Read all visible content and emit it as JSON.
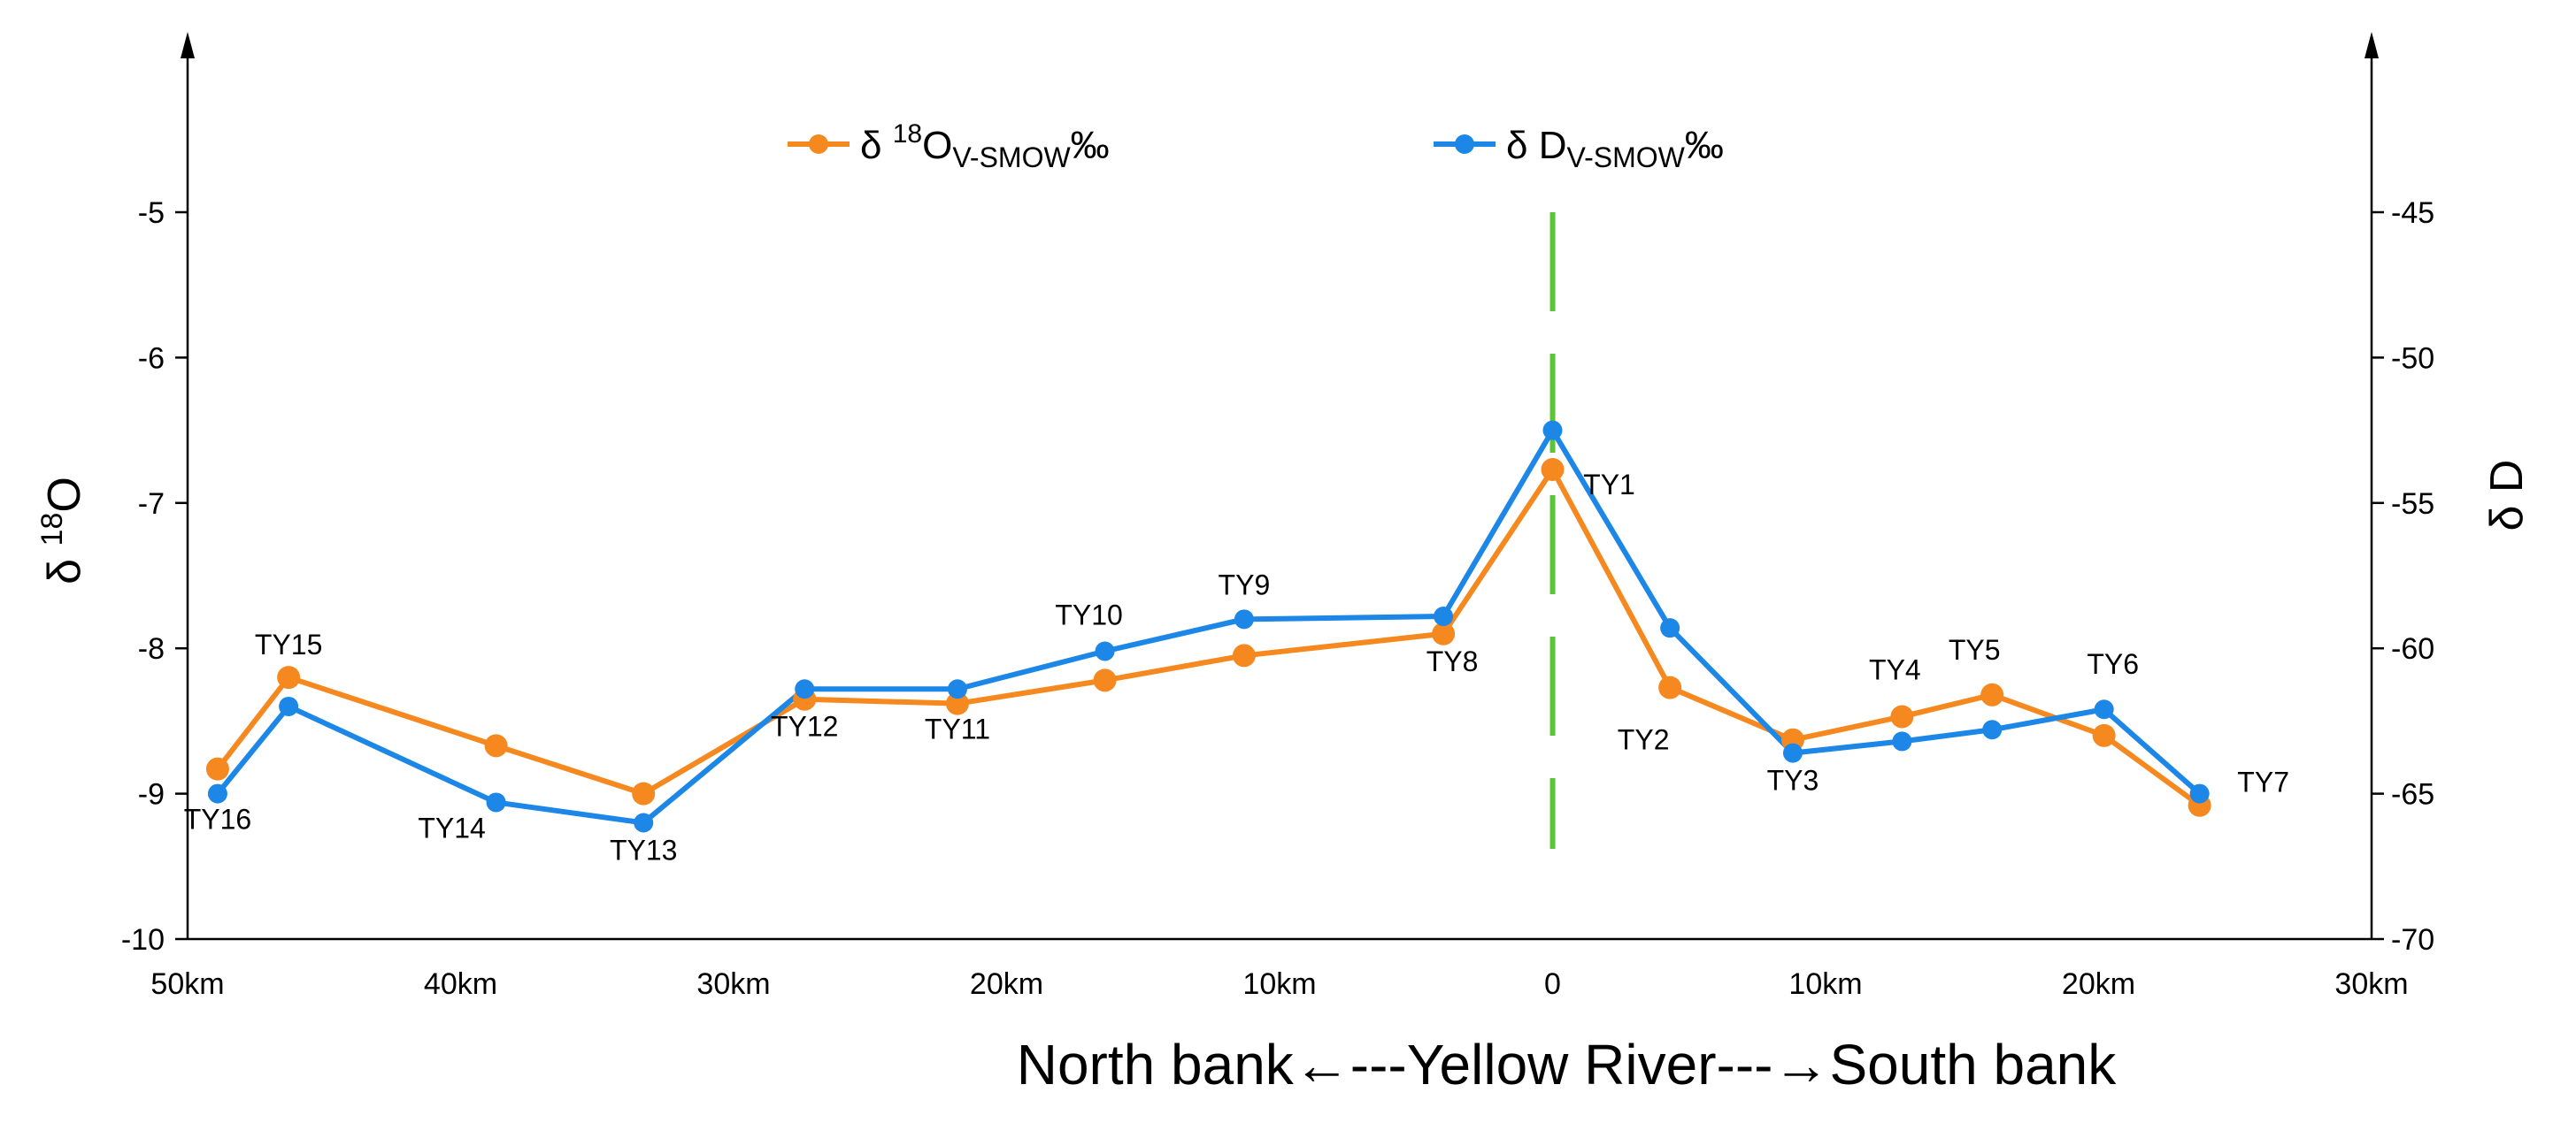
{
  "chart_data": {
    "type": "line",
    "title": "",
    "xlabel": "North bank←---Yellow River---→South bank",
    "ylabel_left": "δ 18O",
    "ylabel_left_parts": {
      "delta": "δ",
      "sup": "18",
      "base": "O"
    },
    "ylabel_right": "δ D",
    "ylim_left": [
      -10,
      -4
    ],
    "ylim_right": [
      -70,
      -40
    ],
    "yticks_left": [
      -10,
      -9,
      -8,
      -7,
      -6,
      -5
    ],
    "yticks_right": [
      -70,
      -65,
      -60,
      -55,
      -50,
      -45
    ],
    "xlim_km": [
      -50,
      30
    ],
    "xticks": [
      {
        "x": -50,
        "label": "50km"
      },
      {
        "x": -40,
        "label": "40km"
      },
      {
        "x": -30,
        "label": "30km"
      },
      {
        "x": -20,
        "label": "20km"
      },
      {
        "x": -10,
        "label": "10km"
      },
      {
        "x": 0,
        "label": "0"
      },
      {
        "x": 10,
        "label": "10km"
      },
      {
        "x": 20,
        "label": "20km"
      },
      {
        "x": 30,
        "label": "30km"
      }
    ],
    "river_line_x": 0,
    "colors": {
      "o18": "#F5891F",
      "dD": "#1C87E6",
      "river": "#5FC23B",
      "axis": "#000000"
    },
    "legend": [
      {
        "series": "o18",
        "prefix": "δ ",
        "sup": "18",
        "base": "O",
        "sub": "V-SMOW",
        "suffix": "‰"
      },
      {
        "series": "dD",
        "prefix": "δ ",
        "sup": "",
        "base": "D",
        "sub": "V-SMOW",
        "suffix": "‰"
      }
    ],
    "points": [
      {
        "label": "TY16",
        "x": -48.9,
        "o18": -8.83,
        "dD": -65.0
      },
      {
        "label": "TY15",
        "x": -46.3,
        "o18": -8.2,
        "dD": -62.0
      },
      {
        "label": "TY14",
        "x": -38.7,
        "o18": -8.67,
        "dD": -65.3
      },
      {
        "label": "TY13",
        "x": -33.3,
        "o18": -9.0,
        "dD": -66.0
      },
      {
        "label": "TY12",
        "x": -27.4,
        "o18": -8.35,
        "dD": -61.4
      },
      {
        "label": "TY11",
        "x": -21.8,
        "o18": -8.38,
        "dD": -61.4
      },
      {
        "label": "TY10",
        "x": -16.4,
        "o18": -8.22,
        "dD": -60.1
      },
      {
        "label": "TY9",
        "x": -11.3,
        "o18": -8.05,
        "dD": -59.0
      },
      {
        "label": "TY8",
        "x": -4.0,
        "o18": -7.9,
        "dD": -58.9
      },
      {
        "label": "TY1",
        "x": 0.0,
        "o18": -6.77,
        "dD": -52.5
      },
      {
        "label": "TY2",
        "x": 4.3,
        "o18": -8.27,
        "dD": -59.3
      },
      {
        "label": "TY3",
        "x": 8.8,
        "o18": -8.63,
        "dD": -63.6
      },
      {
        "label": "TY4",
        "x": 12.8,
        "o18": -8.47,
        "dD": -63.2
      },
      {
        "label": "TY5",
        "x": 16.1,
        "o18": -8.32,
        "dD": -62.8
      },
      {
        "label": "TY6",
        "x": 20.2,
        "o18": -8.6,
        "dD": -62.1
      },
      {
        "label": "TY7",
        "x": 23.7,
        "o18": -9.08,
        "dD": -65.0
      }
    ]
  }
}
